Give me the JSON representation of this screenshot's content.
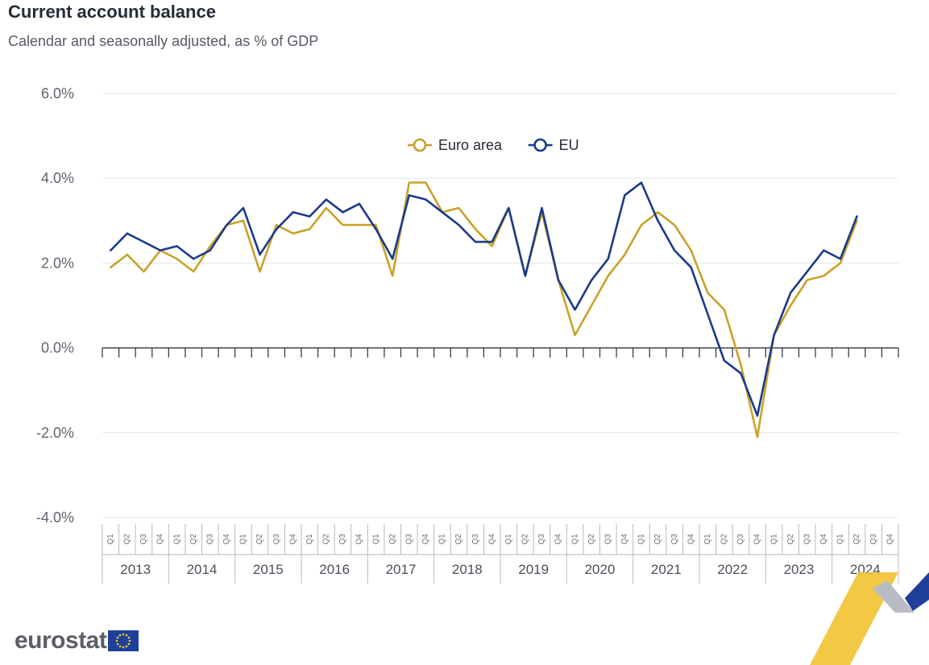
{
  "chart_data": {
    "type": "line",
    "title": "Current account balance",
    "subtitle": "Calendar and seasonally adjusted, as % of GDP",
    "ylim": [
      -4,
      6
    ],
    "yticks": [
      "6.0%",
      "4.0%",
      "2.0%",
      "0.0%",
      "-2.0%",
      "-4.0%"
    ],
    "ytick_values": [
      6,
      4,
      2,
      0,
      -2,
      -4
    ],
    "years": [
      "2013",
      "2014",
      "2015",
      "2016",
      "2017",
      "2018",
      "2019",
      "2020",
      "2021",
      "2022",
      "2023",
      "2024"
    ],
    "quarters": [
      "Q1",
      "Q2",
      "Q3",
      "Q4"
    ],
    "legend_position": "top-center",
    "series": [
      {
        "name": "Euro area",
        "color": "#c9a227",
        "values": [
          1.9,
          2.2,
          1.8,
          2.3,
          2.1,
          1.8,
          2.4,
          2.9,
          3.0,
          1.8,
          2.9,
          2.7,
          2.8,
          3.3,
          2.9,
          2.9,
          2.9,
          1.7,
          3.9,
          3.9,
          3.2,
          3.3,
          2.8,
          2.4,
          3.3,
          1.7,
          3.2,
          1.6,
          0.3,
          1.0,
          1.7,
          2.2,
          2.9,
          3.2,
          2.9,
          2.3,
          1.3,
          0.9,
          -0.4,
          -2.1,
          0.3,
          1.0,
          1.6,
          1.7,
          2.0,
          3.0
        ]
      },
      {
        "name": "EU",
        "color": "#1a3a8a",
        "values": [
          2.3,
          2.7,
          2.5,
          2.3,
          2.4,
          2.1,
          2.3,
          2.9,
          3.3,
          2.2,
          2.8,
          3.2,
          3.1,
          3.5,
          3.2,
          3.4,
          2.8,
          2.1,
          3.6,
          3.5,
          3.2,
          2.9,
          2.5,
          2.5,
          3.3,
          1.7,
          3.3,
          1.6,
          0.9,
          1.6,
          2.1,
          3.6,
          3.9,
          3.0,
          2.3,
          1.9,
          0.8,
          -0.3,
          -0.6,
          -1.6,
          0.3,
          1.3,
          1.8,
          2.3,
          2.1,
          3.1
        ]
      }
    ]
  },
  "logo": {
    "text": "eurostat"
  }
}
